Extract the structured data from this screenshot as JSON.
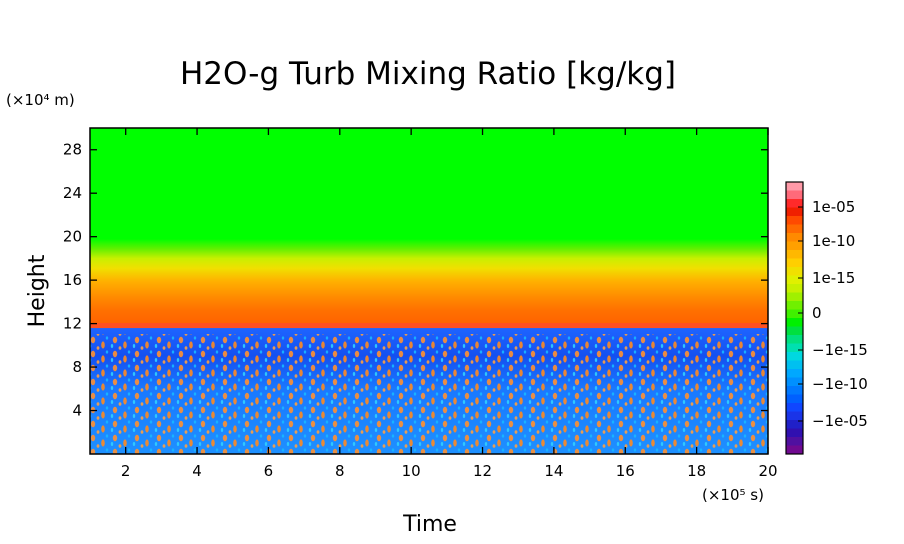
{
  "chart_data": {
    "type": "heatmap",
    "title": "H2O-g Turb Mixing Ratio [kg/kg]",
    "xlabel": "Time",
    "ylabel": "Height",
    "x_unit": "(×10⁵ s)",
    "y_unit": "(×10⁴ m)",
    "xlim": [
      1,
      20
    ],
    "ylim": [
      0,
      30
    ],
    "x_ticks": [
      2,
      4,
      6,
      8,
      10,
      12,
      14,
      16,
      18,
      20
    ],
    "x_tick_labels": [
      "2",
      "4",
      "6",
      "8",
      "10",
      "12",
      "14",
      "16",
      "18",
      "20"
    ],
    "y_ticks": [
      4,
      8,
      12,
      16,
      20,
      24,
      28
    ],
    "y_tick_labels": [
      "4",
      "8",
      "12",
      "16",
      "20",
      "24",
      "28"
    ],
    "regions": [
      {
        "y_from": 19,
        "y_to": 30,
        "level": "0",
        "color": "#00ff00"
      },
      {
        "y_from": 16,
        "y_to": 19,
        "level": "1e-15",
        "color": "#e6e600"
      },
      {
        "y_from": 11.5,
        "y_to": 16,
        "level": "1e-10",
        "color": "#ff7000"
      },
      {
        "y_from": 0,
        "y_to": 11.5,
        "level": "-1e-10 (mixed with positive patches)",
        "color": "#1e64ff"
      }
    ],
    "colorbar": {
      "tick_labels": [
        "1e-05",
        "1e-10",
        "1e-15",
        "0",
        "−1e-15",
        "−1e-10",
        "−1e-05"
      ],
      "colors": [
        "#ff9aa8",
        "#ff6a7a",
        "#ff2a2a",
        "#f02000",
        "#ff4a00",
        "#ff6a00",
        "#ff8a00",
        "#ffa000",
        "#ffb800",
        "#ffcf00",
        "#f0e000",
        "#e0f000",
        "#c8f000",
        "#a0f000",
        "#70f000",
        "#40f000",
        "#00f000",
        "#00e040",
        "#00e080",
        "#00e0b0",
        "#00d8e0",
        "#00c0f0",
        "#00a8ff",
        "#0090ff",
        "#0078ff",
        "#0060ff",
        "#1046ff",
        "#1a34e8",
        "#2020c8",
        "#3010b0",
        "#5010a0",
        "#700a90"
      ]
    }
  }
}
